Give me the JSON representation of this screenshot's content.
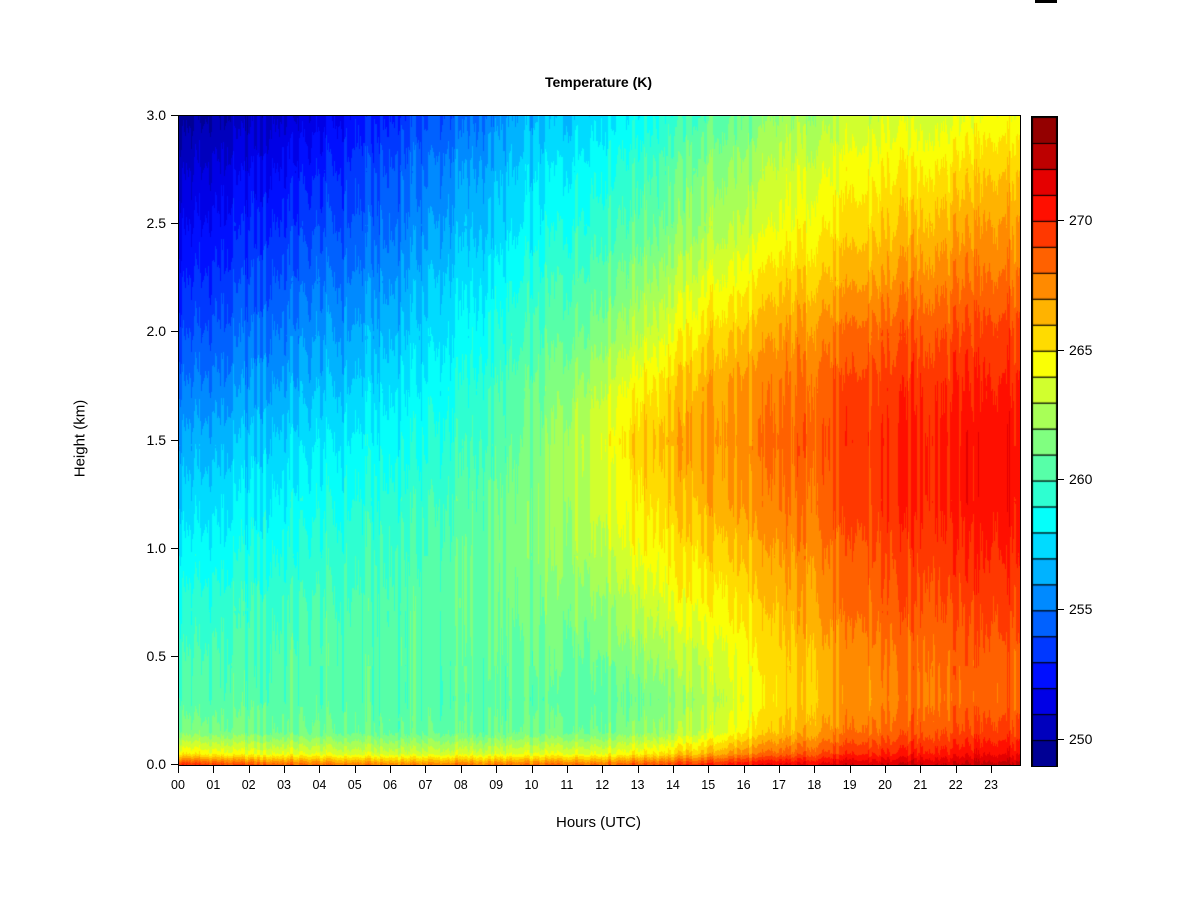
{
  "window": {
    "artifact": "black-bar-top-right"
  },
  "chart_data": {
    "type": "heatmap",
    "title": "Temperature (K)",
    "xlabel": "Hours (UTC)",
    "ylabel": "Height (km)",
    "x_tick_labels": [
      "00",
      "01",
      "02",
      "03",
      "04",
      "05",
      "06",
      "07",
      "08",
      "09",
      "10",
      "11",
      "12",
      "13",
      "14",
      "15",
      "16",
      "17",
      "18",
      "19",
      "20",
      "21",
      "22",
      "23"
    ],
    "x_range_hours": [
      0,
      23.79
    ],
    "y_tick_labels": [
      "0.0",
      "0.5",
      "1.0",
      "1.5",
      "2.0",
      "2.5",
      "3.0"
    ],
    "y_tick_values": [
      0,
      0.5,
      1.0,
      1.5,
      2.0,
      2.5,
      3.0
    ],
    "y_range_km": [
      0,
      3
    ],
    "grid": "off",
    "legend_position": "right-colorbar",
    "colorbar": {
      "min": 249,
      "max": 274,
      "level_step": 1,
      "tick_values": [
        250,
        255,
        260,
        265,
        270
      ],
      "tick_labels": [
        "250",
        "255",
        "260",
        "265",
        "270"
      ],
      "colormap": "jet"
    },
    "hours": [
      0,
      1,
      2,
      3,
      4,
      5,
      6,
      7,
      8,
      9,
      10,
      11,
      12,
      13,
      14,
      15,
      16,
      17,
      18,
      19,
      20,
      21,
      22,
      23,
      24
    ],
    "heights_km": [
      0.0,
      0.05,
      0.15,
      0.3,
      0.5,
      0.75,
      1.0,
      1.25,
      1.5,
      1.75,
      2.0,
      2.25,
      2.5,
      2.75,
      3.0
    ],
    "temperature_grid_K": [
      [
        270.0,
        269.2,
        268.8,
        268.3,
        268.0,
        267.8,
        267.6,
        267.6,
        267.8,
        267.8,
        268.0,
        268.2,
        268.3,
        268.8,
        269.3,
        270.0,
        270.6,
        271.0,
        271.3,
        271.6,
        271.8,
        272.0,
        272.2,
        272.5,
        272.5
      ],
      [
        265.0,
        264.5,
        264.2,
        264.0,
        263.8,
        263.6,
        263.5,
        263.5,
        263.6,
        263.6,
        263.8,
        264.0,
        264.2,
        264.8,
        265.5,
        266.5,
        267.5,
        268.2,
        269.0,
        269.6,
        270.0,
        270.3,
        270.6,
        271.0,
        271.0
      ],
      [
        261.5,
        261.3,
        261.2,
        261.0,
        261.0,
        260.9,
        260.8,
        260.8,
        260.8,
        260.9,
        261.0,
        261.1,
        261.3,
        261.8,
        262.5,
        263.5,
        264.8,
        266.0,
        267.0,
        267.8,
        268.3,
        268.8,
        269.2,
        269.5,
        269.5
      ],
      [
        260.4,
        260.4,
        260.4,
        260.4,
        260.4,
        260.4,
        260.4,
        260.4,
        260.4,
        260.5,
        260.5,
        260.6,
        260.8,
        261.2,
        261.8,
        262.8,
        264.0,
        265.2,
        266.2,
        267.0,
        267.6,
        268.0,
        268.3,
        268.6,
        268.6
      ],
      [
        260.0,
        260.1,
        260.2,
        260.3,
        260.4,
        260.4,
        260.5,
        260.5,
        260.6,
        260.7,
        260.8,
        261.0,
        261.4,
        262.0,
        262.8,
        263.6,
        264.5,
        265.5,
        266.5,
        267.3,
        267.9,
        268.3,
        268.6,
        268.8,
        268.8
      ],
      [
        259.2,
        259.4,
        259.6,
        259.8,
        260.0,
        260.2,
        260.3,
        260.5,
        260.7,
        260.9,
        261.2,
        261.6,
        262.2,
        263.2,
        264.2,
        264.8,
        265.3,
        266.2,
        267.2,
        268.0,
        268.6,
        269.0,
        269.3,
        269.6,
        269.6
      ],
      [
        258.2,
        258.4,
        258.8,
        259.0,
        259.3,
        259.6,
        259.9,
        260.2,
        260.6,
        261.0,
        261.5,
        262.2,
        263.2,
        264.5,
        265.2,
        265.8,
        266.2,
        267.0,
        267.8,
        268.5,
        269.2,
        269.6,
        270.0,
        270.2,
        270.2
      ],
      [
        257.2,
        257.5,
        257.9,
        258.2,
        258.6,
        259.0,
        259.3,
        259.7,
        260.2,
        260.8,
        261.5,
        262.5,
        263.8,
        265.2,
        266.0,
        266.8,
        267.2,
        267.8,
        268.5,
        269.2,
        269.8,
        270.2,
        270.5,
        270.8,
        270.8
      ],
      [
        256.2,
        256.5,
        257.0,
        257.3,
        257.8,
        258.2,
        258.6,
        259.0,
        259.6,
        260.3,
        261.2,
        262.5,
        264.2,
        265.8,
        266.5,
        267.2,
        267.5,
        268.2,
        268.8,
        269.3,
        269.8,
        270.2,
        270.5,
        270.8,
        270.8
      ],
      [
        255.0,
        255.3,
        255.8,
        256.2,
        256.8,
        257.2,
        257.8,
        258.3,
        259.0,
        259.8,
        260.8,
        261.8,
        263.2,
        264.8,
        265.8,
        266.8,
        267.2,
        267.8,
        268.5,
        269.0,
        269.5,
        269.8,
        270.2,
        270.2,
        270.2
      ],
      [
        253.8,
        254.2,
        254.8,
        255.2,
        255.8,
        256.2,
        256.8,
        257.5,
        258.2,
        259.0,
        260.0,
        260.8,
        261.8,
        263.0,
        264.2,
        265.5,
        266.0,
        266.8,
        267.5,
        268.0,
        268.5,
        268.8,
        269.2,
        269.5,
        269.5
      ],
      [
        252.8,
        253.2,
        253.8,
        254.2,
        254.8,
        255.2,
        255.8,
        256.8,
        257.5,
        258.2,
        259.2,
        260.0,
        260.8,
        261.8,
        262.8,
        264.0,
        264.5,
        265.5,
        266.0,
        266.5,
        267.0,
        267.5,
        268.0,
        268.2,
        268.2
      ],
      [
        251.8,
        252.2,
        252.8,
        253.2,
        253.8,
        254.2,
        254.8,
        255.8,
        256.5,
        257.2,
        258.2,
        259.0,
        259.8,
        260.5,
        261.5,
        262.5,
        263.0,
        264.0,
        264.8,
        265.2,
        265.8,
        266.2,
        266.8,
        267.2,
        267.2
      ],
      [
        250.8,
        251.2,
        251.8,
        252.2,
        252.8,
        253.5,
        254.2,
        255.0,
        255.8,
        256.5,
        257.5,
        258.2,
        259.0,
        259.8,
        260.8,
        261.8,
        262.2,
        263.2,
        263.8,
        264.2,
        264.8,
        265.0,
        265.5,
        266.0,
        266.0
      ],
      [
        249.5,
        250.0,
        250.5,
        251.0,
        251.5,
        252.5,
        253.0,
        254.0,
        254.5,
        255.5,
        256.5,
        257.0,
        258.0,
        258.5,
        259.5,
        260.5,
        261.0,
        262.0,
        262.5,
        263.0,
        263.5,
        263.5,
        264.0,
        264.5,
        264.5
      ]
    ],
    "stripe_noise_amplitude_K": 1.0
  },
  "layout_colors": {
    "background": "#ffffff",
    "axis": "#000000"
  }
}
